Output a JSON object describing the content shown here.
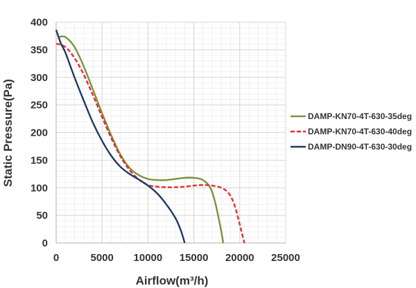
{
  "chart_data": {
    "type": "line",
    "title": "",
    "xlabel": "Airflow(m³/h)",
    "ylabel": "Static Pressure(Pa)",
    "xlim": [
      0,
      25000
    ],
    "ylim": [
      0,
      400
    ],
    "xticks": [
      0,
      5000,
      10000,
      15000,
      20000,
      25000
    ],
    "yticks": [
      0,
      50,
      100,
      150,
      200,
      250,
      300,
      350,
      400
    ],
    "grid": true,
    "legend_position": "right",
    "series": [
      {
        "name": "DAMP-KN70-4T-630-35deg",
        "color": "#77933C",
        "dash": "solid",
        "points": [
          [
            300,
            373
          ],
          [
            1000,
            373
          ],
          [
            2000,
            355
          ],
          [
            3000,
            320
          ],
          [
            4000,
            278
          ],
          [
            5000,
            235
          ],
          [
            6000,
            195
          ],
          [
            7000,
            160
          ],
          [
            8000,
            136
          ],
          [
            9000,
            123
          ],
          [
            10000,
            116
          ],
          [
            11000,
            114
          ],
          [
            12000,
            114
          ],
          [
            13000,
            116
          ],
          [
            14000,
            118
          ],
          [
            15000,
            118
          ],
          [
            16000,
            114
          ],
          [
            16800,
            100
          ],
          [
            17300,
            75
          ],
          [
            17700,
            45
          ],
          [
            18000,
            20
          ],
          [
            18200,
            0
          ]
        ]
      },
      {
        "name": "DAMP-KN70-4T-630-40deg",
        "color": "#E32D2D",
        "dash": "dashed",
        "points": [
          [
            0,
            361
          ],
          [
            1000,
            355
          ],
          [
            2000,
            335
          ],
          [
            3000,
            305
          ],
          [
            4000,
            268
          ],
          [
            5000,
            228
          ],
          [
            6000,
            190
          ],
          [
            7000,
            157
          ],
          [
            8000,
            132
          ],
          [
            9000,
            115
          ],
          [
            10000,
            105
          ],
          [
            11000,
            102
          ],
          [
            12000,
            101
          ],
          [
            13000,
            101
          ],
          [
            14000,
            102
          ],
          [
            15000,
            104
          ],
          [
            16000,
            105
          ],
          [
            17000,
            104
          ],
          [
            18000,
            100
          ],
          [
            18800,
            90
          ],
          [
            19400,
            70
          ],
          [
            19900,
            40
          ],
          [
            20200,
            20
          ],
          [
            20500,
            0
          ]
        ]
      },
      {
        "name": "DAMP-DN90-4T-630-30deg",
        "color": "#1F3864",
        "dash": "solid",
        "points": [
          [
            0,
            386
          ],
          [
            500,
            362
          ],
          [
            1000,
            345
          ],
          [
            2000,
            300
          ],
          [
            3000,
            258
          ],
          [
            4000,
            218
          ],
          [
            5000,
            185
          ],
          [
            6000,
            158
          ],
          [
            7000,
            138
          ],
          [
            8000,
            125
          ],
          [
            9000,
            115
          ],
          [
            10000,
            104
          ],
          [
            11000,
            90
          ],
          [
            12000,
            70
          ],
          [
            13000,
            45
          ],
          [
            13600,
            22
          ],
          [
            14000,
            0
          ]
        ]
      }
    ]
  }
}
